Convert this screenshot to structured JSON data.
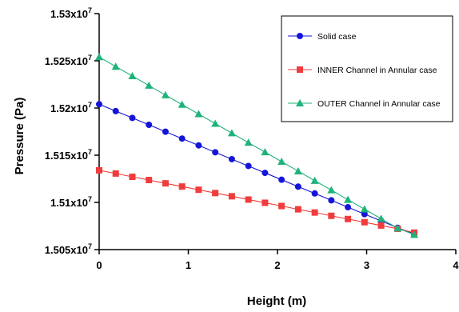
{
  "chart_data": {
    "type": "line",
    "xlabel": "Height (m)",
    "ylabel": "Pressure (Pa)",
    "xlim": [
      0,
      4
    ],
    "ylim": [
      15050000,
      15300000
    ],
    "x_ticks": [
      {
        "value": 0,
        "label": "0"
      },
      {
        "value": 1,
        "label": "1"
      },
      {
        "value": 2,
        "label": "2"
      },
      {
        "value": 3,
        "label": "3"
      },
      {
        "value": 4,
        "label": "4"
      }
    ],
    "y_ticks": [
      {
        "value": 15050000,
        "mantissa": "1.505x10",
        "exponent": "7"
      },
      {
        "value": 15100000,
        "mantissa": "1.51x10",
        "exponent": "7"
      },
      {
        "value": 15150000,
        "mantissa": "1.515x10",
        "exponent": "7"
      },
      {
        "value": 15200000,
        "mantissa": "1.52x10",
        "exponent": "7"
      },
      {
        "value": 15250000,
        "mantissa": "1.525x10",
        "exponent": "7"
      },
      {
        "value": 15300000,
        "mantissa": "1.53x10",
        "exponent": "7"
      }
    ],
    "grid": false,
    "legend_position": "top-right",
    "series": [
      {
        "name": "Solid case",
        "color": "#1515d8",
        "marker": "circle",
        "x": [
          0,
          0.186,
          0.372,
          0.558,
          0.744,
          0.93,
          1.116,
          1.302,
          1.488,
          1.674,
          1.86,
          2.046,
          2.232,
          2.418,
          2.604,
          2.79,
          2.976,
          3.162,
          3.348,
          3.534
        ],
        "y": [
          15204000,
          15196700,
          15189500,
          15182200,
          15174900,
          15167600,
          15160400,
          15153100,
          15145800,
          15138600,
          15131300,
          15124000,
          15116700,
          15109500,
          15102200,
          15094900,
          15087600,
          15080400,
          15073100,
          15066800
        ]
      },
      {
        "name": "INNER Channel in Annular case",
        "color": "#f03c3c",
        "marker": "square",
        "x": [
          0,
          0.186,
          0.372,
          0.558,
          0.744,
          0.93,
          1.116,
          1.302,
          1.488,
          1.674,
          1.86,
          2.046,
          2.232,
          2.418,
          2.604,
          2.79,
          2.976,
          3.162,
          3.348,
          3.534
        ],
        "y": [
          15134000,
          15130600,
          15127100,
          15123700,
          15120200,
          15116800,
          15113400,
          15109900,
          15106500,
          15103000,
          15099600,
          15096200,
          15092700,
          15089300,
          15085800,
          15082400,
          15079000,
          15075500,
          15072100,
          15068000
        ]
      },
      {
        "name": "OUTER Channel in Annular case",
        "color": "#1fb37a",
        "marker": "triangle",
        "x": [
          0,
          0.186,
          0.372,
          0.558,
          0.744,
          0.93,
          1.116,
          1.302,
          1.488,
          1.674,
          1.86,
          2.046,
          2.232,
          2.418,
          2.604,
          2.79,
          2.976,
          3.162,
          3.348,
          3.534
        ],
        "y": [
          15254000,
          15243900,
          15233900,
          15223800,
          15213700,
          15203600,
          15193600,
          15183500,
          15173400,
          15163300,
          15153300,
          15143200,
          15133100,
          15123000,
          15113000,
          15102900,
          15092800,
          15082700,
          15072700,
          15065800
        ]
      }
    ]
  }
}
